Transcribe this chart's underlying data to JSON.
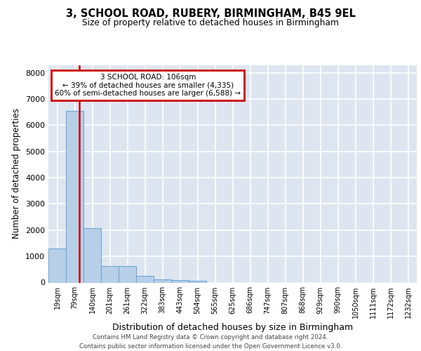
{
  "title1": "3, SCHOOL ROAD, RUBERY, BIRMINGHAM, B45 9EL",
  "title2": "Size of property relative to detached houses in Birmingham",
  "xlabel": "Distribution of detached houses by size in Birmingham",
  "ylabel": "Number of detached properties",
  "categories": [
    "19sqm",
    "79sqm",
    "140sqm",
    "201sqm",
    "261sqm",
    "322sqm",
    "383sqm",
    "443sqm",
    "504sqm",
    "565sqm",
    "625sqm",
    "686sqm",
    "747sqm",
    "807sqm",
    "868sqm",
    "929sqm",
    "990sqm",
    "1050sqm",
    "1111sqm",
    "1172sqm",
    "1232sqm"
  ],
  "values": [
    1300,
    6550,
    2080,
    630,
    630,
    250,
    130,
    100,
    65,
    0,
    0,
    0,
    0,
    0,
    0,
    0,
    0,
    0,
    0,
    0,
    0
  ],
  "bar_color": "#b8cfe8",
  "bar_edge_color": "#6fa8d4",
  "vline_color": "#cc0000",
  "vline_pos": 1.27,
  "annotation_line1": "3 SCHOOL ROAD: 106sqm",
  "annotation_line2": "← 39% of detached houses are smaller (4,335)",
  "annotation_line3": "60% of semi-detached houses are larger (6,588) →",
  "annotation_box_color": "#cc0000",
  "ylim": [
    0,
    8300
  ],
  "yticks": [
    0,
    1000,
    2000,
    3000,
    4000,
    5000,
    6000,
    7000,
    8000
  ],
  "background_color": "#dde6f0",
  "grid_color": "#ffffff",
  "footer1": "Contains HM Land Registry data © Crown copyright and database right 2024.",
  "footer2": "Contains public sector information licensed under the Open Government Licence v3.0."
}
